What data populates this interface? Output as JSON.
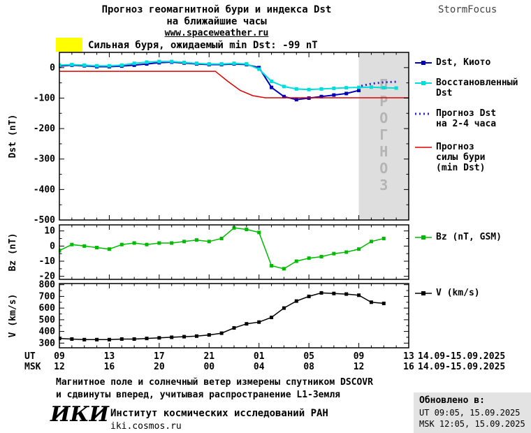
{
  "header": {
    "title_line1": "Прогноз геомагнитной бури и индекса Dst",
    "title_line2": "на ближайшие часы",
    "website": "www.spaceweather.ru",
    "brand": "StormFocus"
  },
  "alert": {
    "label": "Сильная буря, ожидаемый min Dst: -99 nT",
    "swatch_color": "#ffff00"
  },
  "legend": {
    "dst_kyoto": [
      "Dst, Киото"
    ],
    "restored_dst": [
      "Восстановленный",
      "Dst"
    ],
    "forecast_dst": [
      "Прогноз Dst",
      "на 2-4 часа"
    ],
    "forecast_storm": [
      "Прогноз",
      "силы бури",
      "(min Dst)"
    ],
    "bz": [
      "Bz (nT, GSM)"
    ],
    "v": [
      "V (km/s)"
    ]
  },
  "footer": {
    "note_line1": "Магнитное поле и солнечный ветер измерены спутником DSCOVR",
    "note_line2": "и сдвинуты вперед, учитывая распространение L1-Земля",
    "logo": "ИКИ",
    "institute": "Институт космических исследований РАН",
    "site": "iki.cosmos.ru",
    "updated_label": "Обновлено в:",
    "updated_ut": "UT  09:05, 15.09.2025",
    "updated_msk": "MSK 12:05, 15.09.2025"
  },
  "chart_data": [
    {
      "name": "dst-panel",
      "type": "line",
      "ylabel": "Dst (nT)",
      "ylim": [
        -500,
        50
      ],
      "yticks": [
        0,
        -100,
        -200,
        -300,
        -400,
        -500
      ],
      "xlim": [
        0,
        28
      ],
      "xticks": [
        0,
        4,
        8,
        12,
        16,
        20,
        24,
        28
      ],
      "forecast_region": [
        24,
        28
      ],
      "watermark": "ПРОГНОЗ",
      "series": [
        {
          "id": "dst-kyoto",
          "name": "Dst, Киото",
          "color": "#0000bb",
          "width": 2,
          "dash": null,
          "markers": true,
          "x": [
            0,
            1,
            2,
            3,
            4,
            5,
            6,
            7,
            8,
            9,
            10,
            11,
            12,
            13,
            14,
            15,
            16,
            17,
            18,
            19,
            20,
            21,
            22,
            23,
            24
          ],
          "y": [
            5,
            8,
            6,
            3,
            3,
            5,
            8,
            12,
            16,
            18,
            15,
            12,
            10,
            10,
            12,
            10,
            0,
            -65,
            -95,
            -105,
            -100,
            -95,
            -90,
            -85,
            -75
          ]
        },
        {
          "id": "restored-dst",
          "name": "Восстановленный Dst",
          "color": "#00dddd",
          "width": 2,
          "dash": null,
          "markers": true,
          "x": [
            0,
            1,
            2,
            3,
            4,
            5,
            6,
            7,
            8,
            9,
            10,
            11,
            12,
            13,
            14,
            15,
            16,
            17,
            18,
            19,
            20,
            21,
            22,
            23,
            24,
            25,
            26,
            27
          ],
          "y": [
            8,
            10,
            8,
            6,
            6,
            8,
            14,
            18,
            20,
            20,
            17,
            14,
            12,
            12,
            14,
            12,
            -5,
            -45,
            -62,
            -70,
            -72,
            -70,
            -68,
            -66,
            -65,
            -64,
            -66,
            -67
          ]
        },
        {
          "id": "forecast-dst",
          "name": "Прогноз Dst на 2-4 часа",
          "color": "#2222dd",
          "width": 3,
          "dash": "2,4",
          "markers": false,
          "x": [
            24.2,
            25,
            26,
            27.2
          ],
          "y": [
            -60,
            -53,
            -48,
            -46
          ]
        },
        {
          "id": "storm-forecast",
          "name": "Прогноз силы бури (min Dst)",
          "color": "#dd0000",
          "width": 1.5,
          "dash": null,
          "markers": false,
          "x": [
            0,
            12.5,
            13.5,
            14.5,
            15.5,
            16.5,
            28
          ],
          "y": [
            -12,
            -12,
            -45,
            -75,
            -92,
            -99,
            -99
          ]
        }
      ]
    },
    {
      "name": "bz-panel",
      "type": "line",
      "ylabel": "Bz (nT)",
      "ylim": [
        -22,
        14
      ],
      "yticks": [
        10,
        0,
        -10,
        -20
      ],
      "xlim": [
        0,
        28
      ],
      "xticks": [
        0,
        4,
        8,
        12,
        16,
        20,
        24,
        28
      ],
      "series": [
        {
          "id": "bz",
          "name": "Bz (nT, GSM)",
          "color": "#00bb00",
          "width": 1.5,
          "dash": null,
          "markers": true,
          "x": [
            0,
            1,
            2,
            3,
            4,
            5,
            6,
            7,
            8,
            9,
            10,
            11,
            12,
            13,
            14,
            15,
            16,
            17,
            18,
            19,
            20,
            21,
            22,
            23,
            24,
            25,
            26
          ],
          "y": [
            -3,
            1,
            0,
            -1,
            -2,
            1,
            2,
            1,
            2,
            2,
            3,
            4,
            3,
            5,
            12,
            11,
            9,
            -13,
            -15,
            -10,
            -8,
            -7,
            -5,
            -4,
            -2,
            3,
            5
          ]
        }
      ]
    },
    {
      "name": "v-panel",
      "type": "line",
      "ylabel": "V (km/s)",
      "ylim": [
        260,
        810
      ],
      "yticks": [
        800,
        700,
        600,
        500,
        400,
        300
      ],
      "xlim": [
        0,
        28
      ],
      "xticks": [
        0,
        4,
        8,
        12,
        16,
        20,
        24,
        28
      ],
      "series": [
        {
          "id": "v",
          "name": "V (km/s)",
          "color": "#000000",
          "width": 1.5,
          "dash": null,
          "markers": true,
          "x": [
            0,
            1,
            2,
            3,
            4,
            5,
            6,
            7,
            8,
            9,
            10,
            11,
            12,
            13,
            14,
            15,
            16,
            17,
            18,
            19,
            20,
            21,
            22,
            23,
            24,
            25,
            26
          ],
          "y": [
            340,
            335,
            330,
            330,
            330,
            335,
            335,
            340,
            345,
            350,
            355,
            360,
            370,
            385,
            430,
            465,
            480,
            520,
            600,
            660,
            700,
            730,
            725,
            720,
            710,
            650,
            640
          ]
        }
      ],
      "xaxis": {
        "ticks_t": [
          0,
          4,
          8,
          12,
          16,
          20,
          24,
          28
        ],
        "ut_labels": [
          "09",
          "13",
          "17",
          "21",
          "01",
          "05",
          "09",
          "13"
        ],
        "msk_labels": [
          "12",
          "16",
          "20",
          "00",
          "04",
          "08",
          "12",
          "16"
        ],
        "ut_prefix": "UT",
        "msk_prefix": "MSK",
        "date_range": "14.09-15.09.2025"
      }
    }
  ]
}
